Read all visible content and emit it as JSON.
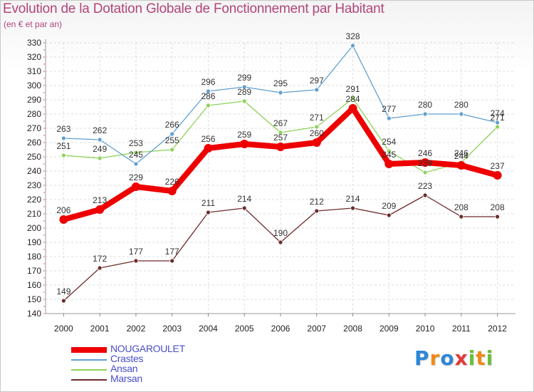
{
  "header": {
    "title": "Evolution de la Dotation Globale de Fonctionnement par Habitant",
    "subtitle": "(en € et par an)"
  },
  "logo": {
    "text": "Proxiti",
    "letters": [
      {
        "ch": "P",
        "color": "#2d86d8"
      },
      {
        "ch": "r",
        "color": "#f08a1c"
      },
      {
        "ch": "o",
        "color": "#2d86d8"
      },
      {
        "ch": "x",
        "color": "#e23b3b"
      },
      {
        "ch": "i",
        "color": "#6cbf3c"
      },
      {
        "ch": "t",
        "color": "#f08a1c"
      },
      {
        "ch": "i",
        "color": "#6cbf3c"
      }
    ]
  },
  "chart_data": {
    "type": "line",
    "title": "Evolution de la Dotation Globale de Fonctionnement par Habitant",
    "subtitle": "(en € et par an)",
    "xlabel": "",
    "ylabel": "",
    "x": [
      "2000",
      "2001",
      "2002",
      "2003",
      "2004",
      "2005",
      "2006",
      "2007",
      "2008",
      "2009",
      "2010",
      "2011",
      "2012"
    ],
    "ylim": [
      140,
      330
    ],
    "ytick_step": 10,
    "grid": true,
    "legend_position": "bottom-left",
    "series": [
      {
        "name": "NOUGAROULET",
        "color": "#ee0000",
        "values": [
          206,
          213,
          229,
          226,
          256,
          259,
          257,
          260,
          284,
          245,
          246,
          244,
          237
        ]
      },
      {
        "name": "Crastes",
        "color": "#5f9fd0",
        "values": [
          263,
          262,
          245,
          266,
          296,
          299,
          295,
          297,
          328,
          277,
          280,
          280,
          274
        ]
      },
      {
        "name": "Ansan",
        "color": "#8ed25a",
        "values": [
          251,
          249,
          253,
          255,
          286,
          289,
          267,
          271,
          291,
          254,
          239,
          246,
          271
        ]
      },
      {
        "name": "Marsan",
        "color": "#6e2a2a",
        "values": [
          149,
          172,
          177,
          177,
          211,
          214,
          190,
          212,
          214,
          209,
          223,
          208,
          208
        ]
      }
    ]
  }
}
